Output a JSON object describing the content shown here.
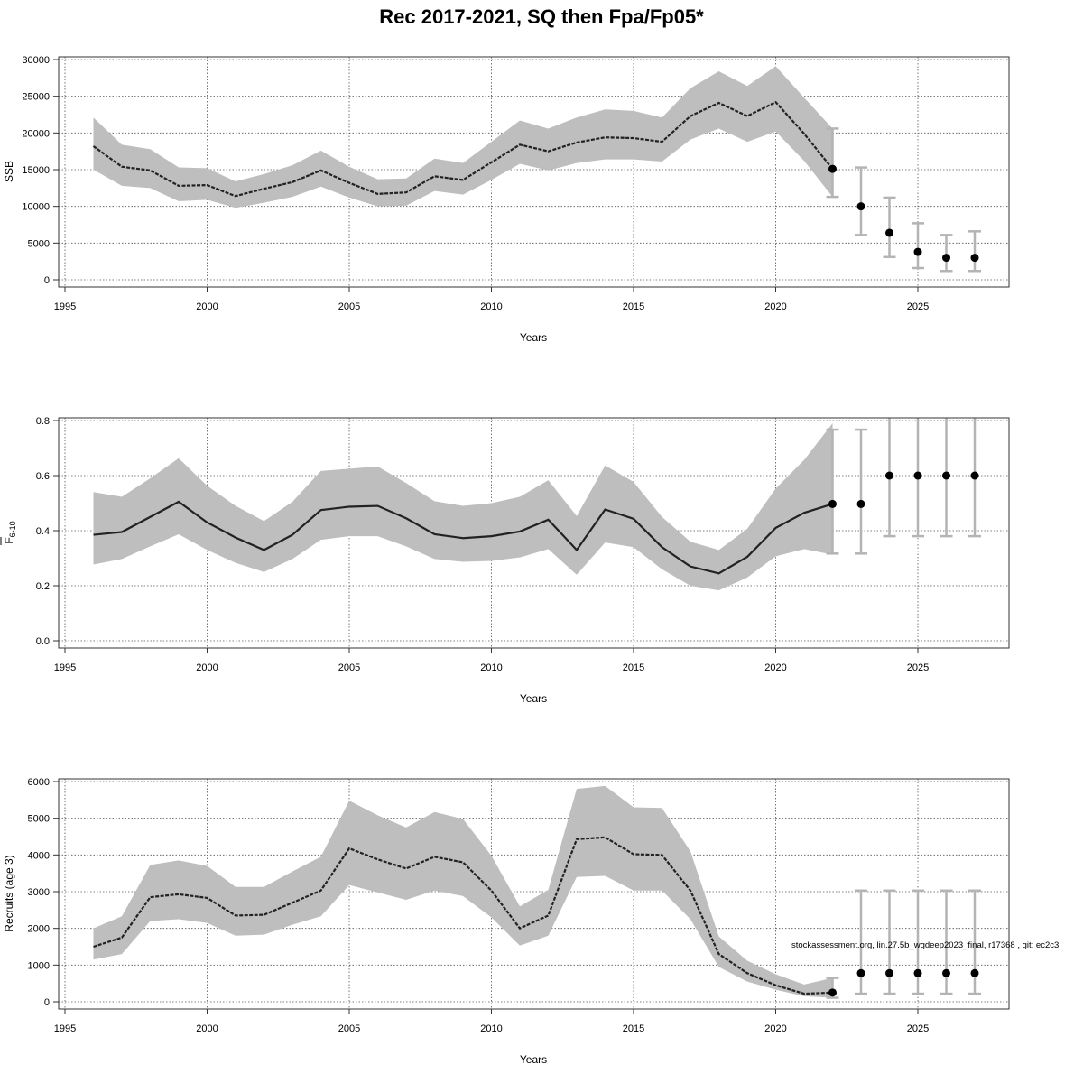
{
  "title": "Rec 2017-2021, SQ then Fpa/Fp05*",
  "watermark": "stockassessment.org, lin.27.5b_wgdeep2023_final, r17368 , git: ec2c3",
  "colors": {
    "band": "#bebebe",
    "line": "#222222",
    "errorbar": "#b4b4b4",
    "point": "#000000"
  },
  "chart_data": [
    {
      "type": "line",
      "title": "",
      "xlabel": "Years",
      "ylabel": "SSB",
      "ylim": [
        0,
        30000
      ],
      "yticks": [
        0,
        5000,
        10000,
        15000,
        20000,
        25000,
        30000
      ],
      "xlim": [
        1995,
        2028
      ],
      "xticks": [
        1995,
        2000,
        2005,
        2010,
        2015,
        2020,
        2025
      ],
      "grid": true,
      "x": [
        1996,
        1997,
        1998,
        1999,
        2000,
        2001,
        2002,
        2003,
        2004,
        2005,
        2006,
        2007,
        2008,
        2009,
        2010,
        2011,
        2012,
        2013,
        2014,
        2015,
        2016,
        2017,
        2018,
        2019,
        2020,
        2021,
        2022
      ],
      "estimate": [
        18200,
        15400,
        14900,
        12800,
        12900,
        11400,
        12400,
        13300,
        14900,
        13200,
        11700,
        11900,
        14100,
        13600,
        16000,
        18400,
        17500,
        18700,
        19400,
        19300,
        18800,
        22300,
        24100,
        22300,
        24200,
        19900,
        15100
      ],
      "upper": [
        22100,
        18400,
        17800,
        15300,
        15200,
        13400,
        14400,
        15600,
        17600,
        15400,
        13700,
        13800,
        16500,
        15900,
        18800,
        21700,
        20600,
        22100,
        23200,
        23000,
        22100,
        26100,
        28400,
        26400,
        29100,
        24800,
        20600
      ],
      "lower": [
        15000,
        12800,
        12500,
        10700,
        10900,
        9800,
        10500,
        11300,
        12700,
        11200,
        10000,
        10100,
        12100,
        11600,
        13600,
        15800,
        14900,
        15900,
        16400,
        16400,
        16100,
        19100,
        20600,
        18800,
        20200,
        16200,
        11300
      ],
      "forecast": {
        "x": [
          2022,
          2023,
          2024,
          2025,
          2026,
          2027
        ],
        "median": [
          15100,
          10000,
          6400,
          3800,
          3000,
          3000
        ],
        "upper": [
          20600,
          15300,
          11200,
          7700,
          6100,
          6600
        ],
        "lower": [
          11300,
          6100,
          3100,
          1600,
          1200,
          1200
        ]
      }
    },
    {
      "type": "line",
      "title": "",
      "xlabel": "Years",
      "ylabel": "F",
      "ylabel_sub": "6-10",
      "ylim": [
        0,
        0.8
      ],
      "yticks": [
        0.0,
        0.2,
        0.4,
        0.6,
        0.8
      ],
      "xlim": [
        1995,
        2028
      ],
      "xticks": [
        1995,
        2000,
        2005,
        2010,
        2015,
        2020,
        2025
      ],
      "grid": true,
      "x": [
        1996,
        1997,
        1998,
        1999,
        2000,
        2001,
        2002,
        2003,
        2004,
        2005,
        2006,
        2007,
        2008,
        2009,
        2010,
        2011,
        2012,
        2013,
        2014,
        2015,
        2016,
        2017,
        2018,
        2019,
        2020,
        2021,
        2022
      ],
      "estimate": [
        0.385,
        0.395,
        0.45,
        0.505,
        0.43,
        0.375,
        0.33,
        0.385,
        0.475,
        0.487,
        0.49,
        0.445,
        0.387,
        0.373,
        0.38,
        0.397,
        0.44,
        0.33,
        0.477,
        0.443,
        0.34,
        0.27,
        0.245,
        0.305,
        0.41,
        0.465,
        0.497
      ],
      "upper": [
        0.54,
        0.523,
        0.59,
        0.663,
        0.563,
        0.49,
        0.435,
        0.505,
        0.617,
        0.625,
        0.633,
        0.573,
        0.507,
        0.49,
        0.5,
        0.523,
        0.583,
        0.453,
        0.637,
        0.577,
        0.45,
        0.36,
        0.33,
        0.407,
        0.553,
        0.657,
        0.79
      ],
      "lower": [
        0.277,
        0.297,
        0.343,
        0.387,
        0.33,
        0.283,
        0.25,
        0.297,
        0.367,
        0.38,
        0.38,
        0.343,
        0.297,
        0.287,
        0.29,
        0.303,
        0.333,
        0.24,
        0.357,
        0.34,
        0.26,
        0.2,
        0.183,
        0.23,
        0.307,
        0.333,
        0.313
      ],
      "forecast": {
        "x": [
          2022,
          2023,
          2024,
          2025,
          2026,
          2027
        ],
        "median": [
          0.497,
          0.497,
          0.6,
          0.6,
          0.6,
          0.6
        ],
        "upper": [
          0.767,
          0.767,
          0.85,
          0.85,
          0.85,
          0.85
        ],
        "lower": [
          0.317,
          0.317,
          0.38,
          0.38,
          0.38,
          0.38
        ]
      }
    },
    {
      "type": "line",
      "title": "",
      "xlabel": "Years",
      "ylabel": "Recruits (age 3)",
      "ylim": [
        0,
        6000
      ],
      "yticks": [
        0,
        1000,
        2000,
        3000,
        4000,
        5000,
        6000
      ],
      "xlim": [
        1995,
        2028
      ],
      "xticks": [
        1995,
        2000,
        2005,
        2010,
        2015,
        2020,
        2025
      ],
      "grid": true,
      "x": [
        1996,
        1997,
        1998,
        1999,
        2000,
        2001,
        2002,
        2003,
        2004,
        2005,
        2006,
        2007,
        2008,
        2009,
        2010,
        2011,
        2012,
        2013,
        2014,
        2015,
        2016,
        2017,
        2018,
        2019,
        2020,
        2021,
        2022
      ],
      "estimate": [
        1500,
        1750,
        2850,
        2930,
        2830,
        2350,
        2370,
        2700,
        3030,
        4180,
        3880,
        3630,
        3950,
        3800,
        3030,
        2000,
        2350,
        4430,
        4480,
        4020,
        4000,
        3030,
        1300,
        780,
        450,
        220,
        250
      ],
      "upper": [
        2000,
        2330,
        3730,
        3850,
        3700,
        3130,
        3130,
        3550,
        3950,
        5480,
        5080,
        4750,
        5170,
        4980,
        3980,
        2600,
        3050,
        5800,
        5880,
        5300,
        5280,
        4100,
        1780,
        1120,
        750,
        470,
        650
      ],
      "lower": [
        1150,
        1300,
        2200,
        2250,
        2150,
        1800,
        1830,
        2100,
        2330,
        3180,
        2980,
        2780,
        3030,
        2880,
        2300,
        1530,
        1800,
        3400,
        3430,
        3030,
        3030,
        2250,
        950,
        550,
        330,
        150,
        110
      ],
      "forecast": {
        "x": [
          2022,
          2023,
          2024,
          2025,
          2026,
          2027
        ],
        "median": [
          250,
          780,
          780,
          780,
          780,
          780
        ],
        "upper": [
          650,
          3030,
          3030,
          3030,
          3030,
          3030
        ],
        "lower": [
          110,
          220,
          220,
          220,
          220,
          220
        ]
      }
    }
  ]
}
